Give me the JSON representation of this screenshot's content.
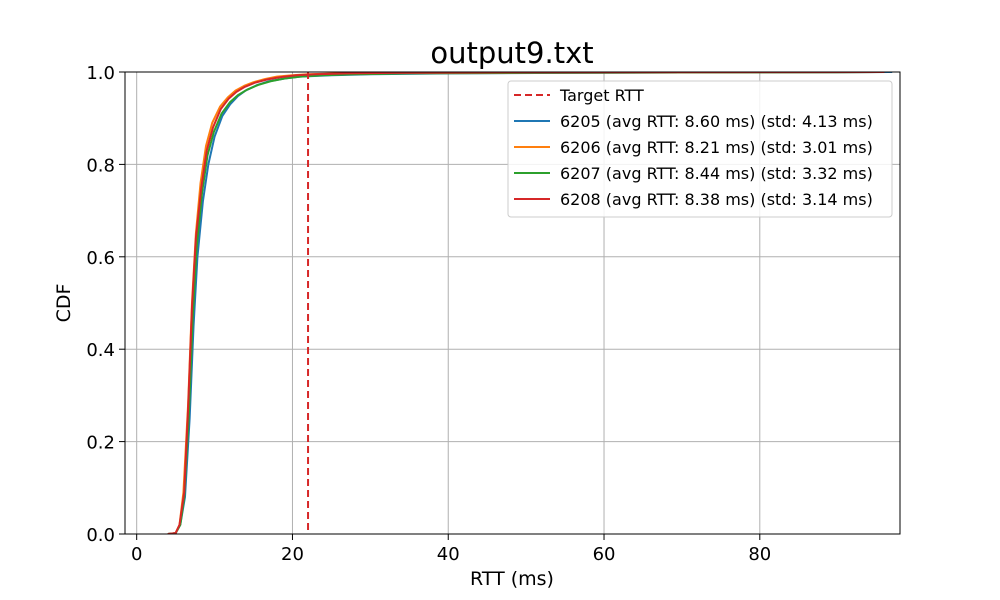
{
  "chart_data": {
    "type": "line",
    "title": "output9.txt",
    "xlabel": "RTT (ms)",
    "ylabel": "CDF",
    "xlim": [
      -1.5,
      98
    ],
    "ylim": [
      0.0,
      1.0
    ],
    "xticks": [
      0,
      20,
      40,
      60,
      80
    ],
    "yticks": [
      0.0,
      0.2,
      0.4,
      0.6,
      0.8,
      1.0
    ],
    "xtick_labels": [
      "0",
      "20",
      "40",
      "60",
      "80"
    ],
    "ytick_labels": [
      "0.0",
      "0.2",
      "0.4",
      "0.6",
      "0.8",
      "1.0"
    ],
    "grid": true,
    "legend_position": "top-right",
    "target_line": {
      "name": "Target RTT",
      "x": 22,
      "color": "#d62728",
      "style": "dashed"
    },
    "series": [
      {
        "name": "6205 (avg RTT: 8.60 ms) (std: 4.13 ms)",
        "color": "#1f77b4",
        "x": [
          4.0,
          5.0,
          5.6,
          6.2,
          6.8,
          7.3,
          7.8,
          8.5,
          9.2,
          10.0,
          11.0,
          12.0,
          13.0,
          14.0,
          15.5,
          17.0,
          19.0,
          21.0,
          25.0,
          30.0,
          40.0,
          55.0,
          70.0,
          90.0,
          97.0
        ],
        "y": [
          0.0,
          0.002,
          0.02,
          0.08,
          0.25,
          0.45,
          0.6,
          0.72,
          0.8,
          0.86,
          0.905,
          0.93,
          0.948,
          0.96,
          0.972,
          0.98,
          0.986,
          0.99,
          0.993,
          0.995,
          0.997,
          0.998,
          0.999,
          0.9995,
          1.0
        ]
      },
      {
        "name": "6206 (avg RTT: 8.21 ms) (std: 3.01 ms)",
        "color": "#ff7f0e",
        "x": [
          4.0,
          5.0,
          5.5,
          6.0,
          6.6,
          7.1,
          7.6,
          8.2,
          8.9,
          9.7,
          10.7,
          11.7,
          12.7,
          13.8,
          15.0,
          16.5,
          18.0,
          20.0,
          22.0,
          26.0,
          32.0,
          45.0,
          60.0,
          80.0,
          96.0
        ],
        "y": [
          0.0,
          0.002,
          0.02,
          0.09,
          0.28,
          0.5,
          0.65,
          0.76,
          0.84,
          0.89,
          0.925,
          0.945,
          0.96,
          0.97,
          0.978,
          0.985,
          0.99,
          0.993,
          0.995,
          0.997,
          0.998,
          0.999,
          0.9995,
          0.9998,
          1.0
        ]
      },
      {
        "name": "6207 (avg RTT: 8.44 ms) (std: 3.32 ms)",
        "color": "#2ca02c",
        "x": [
          4.0,
          5.0,
          5.6,
          6.1,
          6.7,
          7.2,
          7.7,
          8.4,
          9.1,
          9.9,
          10.9,
          12.0,
          13.0,
          14.2,
          15.6,
          17.2,
          19.0,
          21.0,
          24.0,
          28.0,
          35.0,
          50.0,
          70.0,
          90.0,
          96.0
        ],
        "y": [
          0.0,
          0.002,
          0.02,
          0.08,
          0.26,
          0.47,
          0.62,
          0.74,
          0.82,
          0.87,
          0.91,
          0.935,
          0.95,
          0.962,
          0.972,
          0.98,
          0.986,
          0.99,
          0.993,
          0.995,
          0.997,
          0.998,
          0.999,
          0.9995,
          1.0
        ]
      },
      {
        "name": "6208 (avg RTT: 8.38 ms) (std: 3.14 ms)",
        "color": "#d62728",
        "x": [
          4.0,
          5.0,
          5.5,
          6.1,
          6.6,
          7.1,
          7.6,
          8.3,
          9.0,
          9.8,
          10.8,
          11.8,
          12.8,
          13.9,
          15.2,
          16.8,
          18.5,
          20.5,
          23.0,
          27.0,
          33.0,
          45.0,
          65.0,
          85.0,
          96.0
        ],
        "y": [
          0.0,
          0.002,
          0.02,
          0.09,
          0.27,
          0.49,
          0.64,
          0.75,
          0.83,
          0.88,
          0.92,
          0.942,
          0.957,
          0.968,
          0.977,
          0.984,
          0.989,
          0.993,
          0.995,
          0.997,
          0.998,
          0.999,
          0.9995,
          0.9998,
          1.0
        ]
      }
    ]
  }
}
